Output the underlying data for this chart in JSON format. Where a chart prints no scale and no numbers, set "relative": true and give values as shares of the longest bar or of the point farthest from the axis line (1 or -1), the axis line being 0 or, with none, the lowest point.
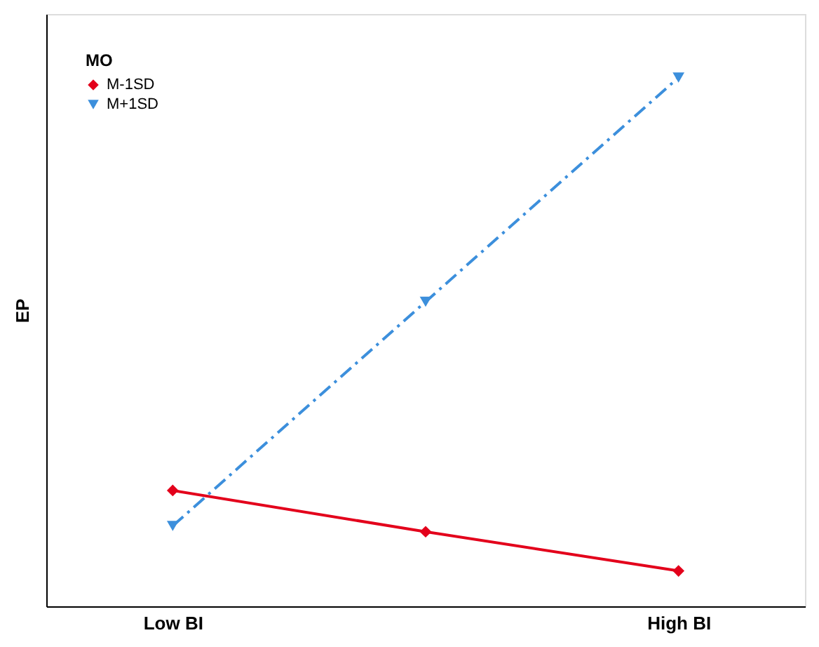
{
  "chart_data": {
    "type": "line",
    "ylabel": "EP",
    "legend_title": "MO",
    "relative": true,
    "legend": "top left",
    "grid": false,
    "categories": [
      "Low BI",
      null,
      "High BI"
    ],
    "series": [
      {
        "name": "M-1SD",
        "color": "#e3001b",
        "values": [
          0.219,
          0.141,
          0.067
        ],
        "marker": "diamond",
        "line_style": "solid"
      },
      {
        "name": "M+1SD",
        "color": "#3c8fdc",
        "values": [
          0.152,
          0.576,
          1
        ],
        "marker": "triangle",
        "line_style": "dashed"
      }
    ]
  }
}
